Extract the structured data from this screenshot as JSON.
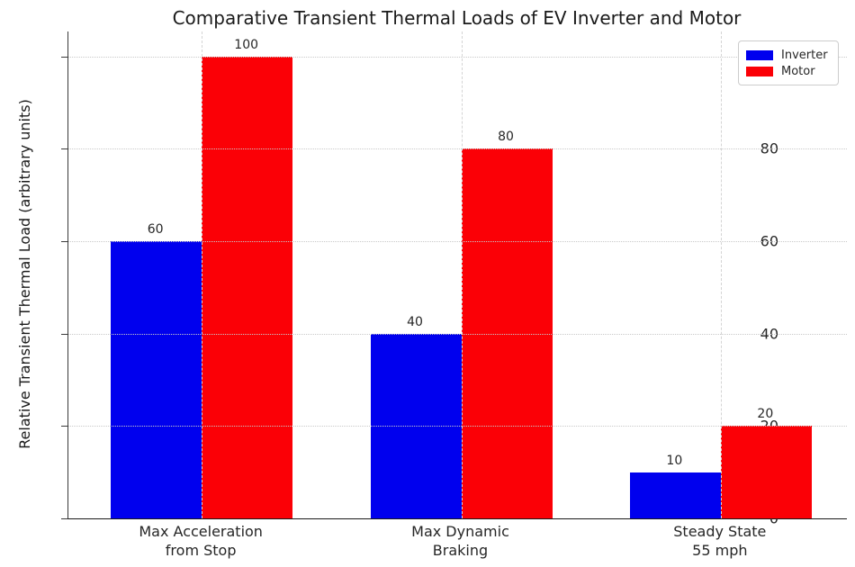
{
  "chart_data": {
    "type": "bar",
    "title": "Comparative Transient Thermal Loads of EV Inverter and Motor",
    "ylabel": "Relative Transient Thermal Load (arbitrary units)",
    "xlabel": "",
    "categories": [
      "Max Acceleration\nfrom Stop",
      "Max Dynamic\nBraking",
      "Steady State\n55 mph"
    ],
    "series": [
      {
        "name": "Inverter",
        "color": "#0000ee",
        "values": [
          60,
          40,
          10
        ]
      },
      {
        "name": "Motor",
        "color": "#fb0006",
        "values": [
          100,
          80,
          20
        ]
      }
    ],
    "yticks": [
      0,
      20,
      40,
      60,
      80,
      100
    ],
    "ylim": [
      0,
      105.4
    ],
    "grid": true,
    "legend_position": "upper right"
  }
}
